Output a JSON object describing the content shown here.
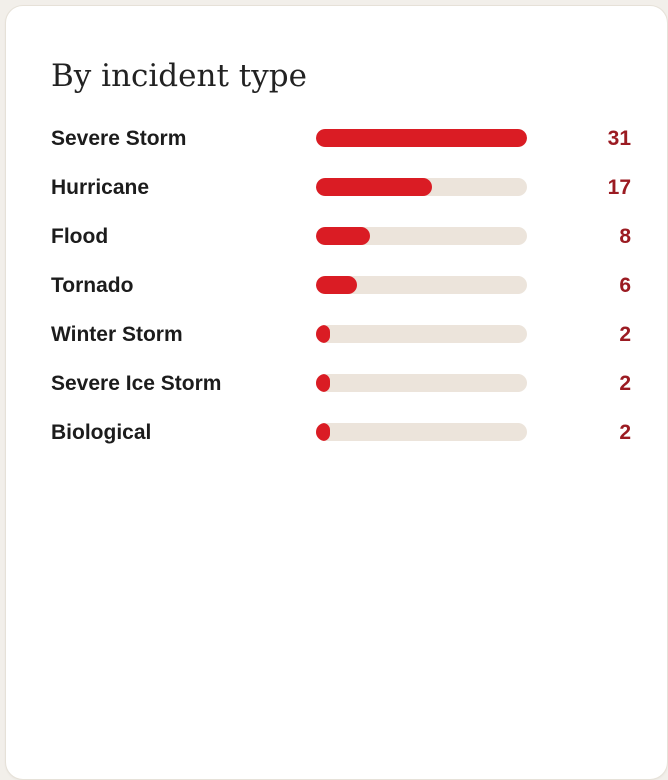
{
  "chart_data": {
    "type": "bar",
    "orientation": "horizontal",
    "title": "By incident type",
    "xlabel": "",
    "ylabel": "",
    "grid": false,
    "legend": "none",
    "xlim": [
      0,
      31
    ],
    "categories": [
      "Severe Storm",
      "Hurricane",
      "Flood",
      "Tornado",
      "Winter Storm",
      "Severe Ice Storm",
      "Biological"
    ],
    "values": [
      31,
      17,
      8,
      6,
      2,
      2,
      2
    ],
    "value_labels": [
      "31",
      "17",
      "8",
      "6",
      "2",
      "2",
      "2"
    ]
  },
  "colors": {
    "bar_fill": "#da1c24",
    "bar_track": "#ece4db",
    "value_text": "#9b1b22",
    "label_text": "#1c1c1c",
    "title_text": "#222222",
    "card_background": "#ffffff",
    "page_background": "#f2efea"
  }
}
